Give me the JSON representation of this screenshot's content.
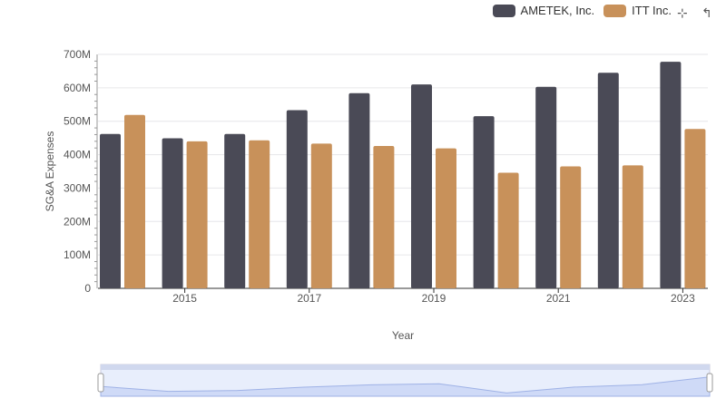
{
  "chart_data": {
    "type": "bar",
    "title": "",
    "xlabel": "Year",
    "ylabel": "SG&A Expenses",
    "ylim": [
      0,
      700
    ],
    "yticks": [
      "0",
      "100M",
      "200M",
      "300M",
      "400M",
      "500M",
      "600M",
      "700M"
    ],
    "xticks": [
      "2015",
      "2017",
      "2019",
      "2021",
      "2023"
    ],
    "categories": [
      2014,
      2015,
      2016,
      2017,
      2018,
      2019,
      2020,
      2021,
      2022,
      2023
    ],
    "legend_position": "top-right",
    "series": [
      {
        "name": "AMETEK, Inc.",
        "color": "#4a4a56",
        "values": [
          462,
          449,
          462,
          533,
          584,
          610,
          515,
          603,
          645,
          678
        ]
      },
      {
        "name": "ITT Inc.",
        "color": "#c8915a",
        "values": [
          519,
          440,
          443,
          433,
          426,
          419,
          346,
          365,
          368,
          477
        ]
      }
    ]
  }
}
